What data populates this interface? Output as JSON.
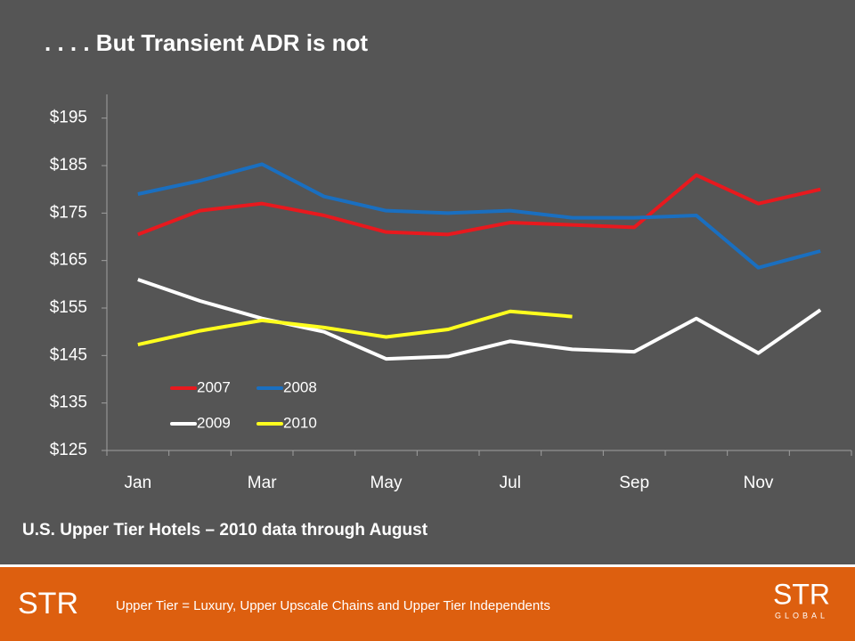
{
  "chart_data": {
    "type": "line",
    "title": ". . . . But Transient ADR is not",
    "subtitle": "U.S. Upper Tier Hotels – 2010 data through August",
    "footnote": "Upper Tier = Luxury, Upper Upscale Chains and Upper Tier Independents",
    "logo_left": "STR",
    "logo_right": "STR",
    "logo_right_sub": "GLOBAL",
    "categories": [
      "Jan",
      null,
      "Mar",
      null,
      "May",
      null,
      "Jul",
      null,
      "Sep",
      null,
      "Nov",
      null
    ],
    "series": [
      {
        "name": "2007",
        "color": "#e8191e",
        "values": [
          170.5,
          175.5,
          177,
          174.5,
          171,
          170.5,
          173,
          172.5,
          172,
          183,
          177,
          180
        ]
      },
      {
        "name": "2008",
        "color": "#1a6fc0",
        "values": [
          179,
          181.8,
          185.3,
          178.5,
          175.5,
          175,
          175.5,
          174,
          174,
          174.5,
          163.5,
          167
        ]
      },
      {
        "name": "2009",
        "color": "#ffffff",
        "values": [
          161,
          156.5,
          152.8,
          150,
          144.3,
          144.8,
          148,
          146.3,
          145.8,
          152.8,
          145.5,
          154.6
        ]
      },
      {
        "name": "2010",
        "color": "#ffff1e",
        "values": [
          147.3,
          150.2,
          152.4,
          150.9,
          148.9,
          150.5,
          154.3,
          153.2,
          null,
          null,
          null,
          null
        ]
      }
    ],
    "ylim": [
      125,
      200
    ],
    "yticks": [
      {
        "value": 125,
        "label": "$125"
      },
      {
        "value": 135,
        "label": "$135"
      },
      {
        "value": 145,
        "label": "$145"
      },
      {
        "value": 155,
        "label": "$155"
      },
      {
        "value": 165,
        "label": "$165"
      },
      {
        "value": 175,
        "label": "$175"
      },
      {
        "value": 185,
        "label": "$185"
      },
      {
        "value": 195,
        "label": "$195"
      }
    ],
    "grid": false,
    "legend": "inside-bottom-left"
  }
}
